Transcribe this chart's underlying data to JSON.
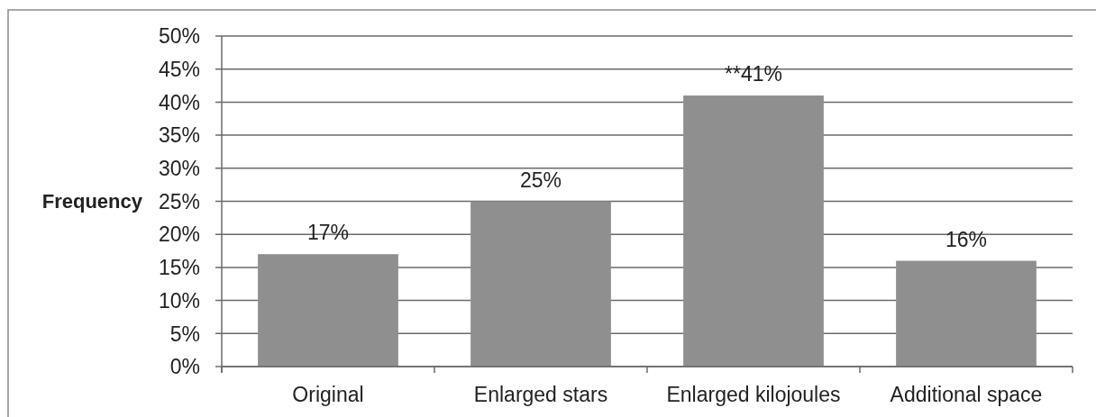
{
  "chart_data": {
    "type": "bar",
    "ylabel": "Frequency",
    "categories": [
      "Original",
      "Enlarged stars",
      "Enlarged kilojoules",
      "Additional space"
    ],
    "values": [
      17,
      25,
      41,
      16
    ],
    "color": "#8f8f8f",
    "value_labels": [
      "17%",
      "25%",
      "**41%",
      "16%"
    ],
    "ylim": [
      0,
      50
    ],
    "yticks": [
      {
        "value": 0,
        "label": "0%"
      },
      {
        "value": 5,
        "label": "5%"
      },
      {
        "value": 10,
        "label": "10%"
      },
      {
        "value": 15,
        "label": "15%"
      },
      {
        "value": 20,
        "label": "20%"
      },
      {
        "value": 25,
        "label": "25%"
      },
      {
        "value": 30,
        "label": "30%"
      },
      {
        "value": 35,
        "label": "35%"
      },
      {
        "value": 40,
        "label": "40%"
      },
      {
        "value": 45,
        "label": "45%"
      },
      {
        "value": 50,
        "label": "50%"
      }
    ],
    "grid": "y"
  }
}
